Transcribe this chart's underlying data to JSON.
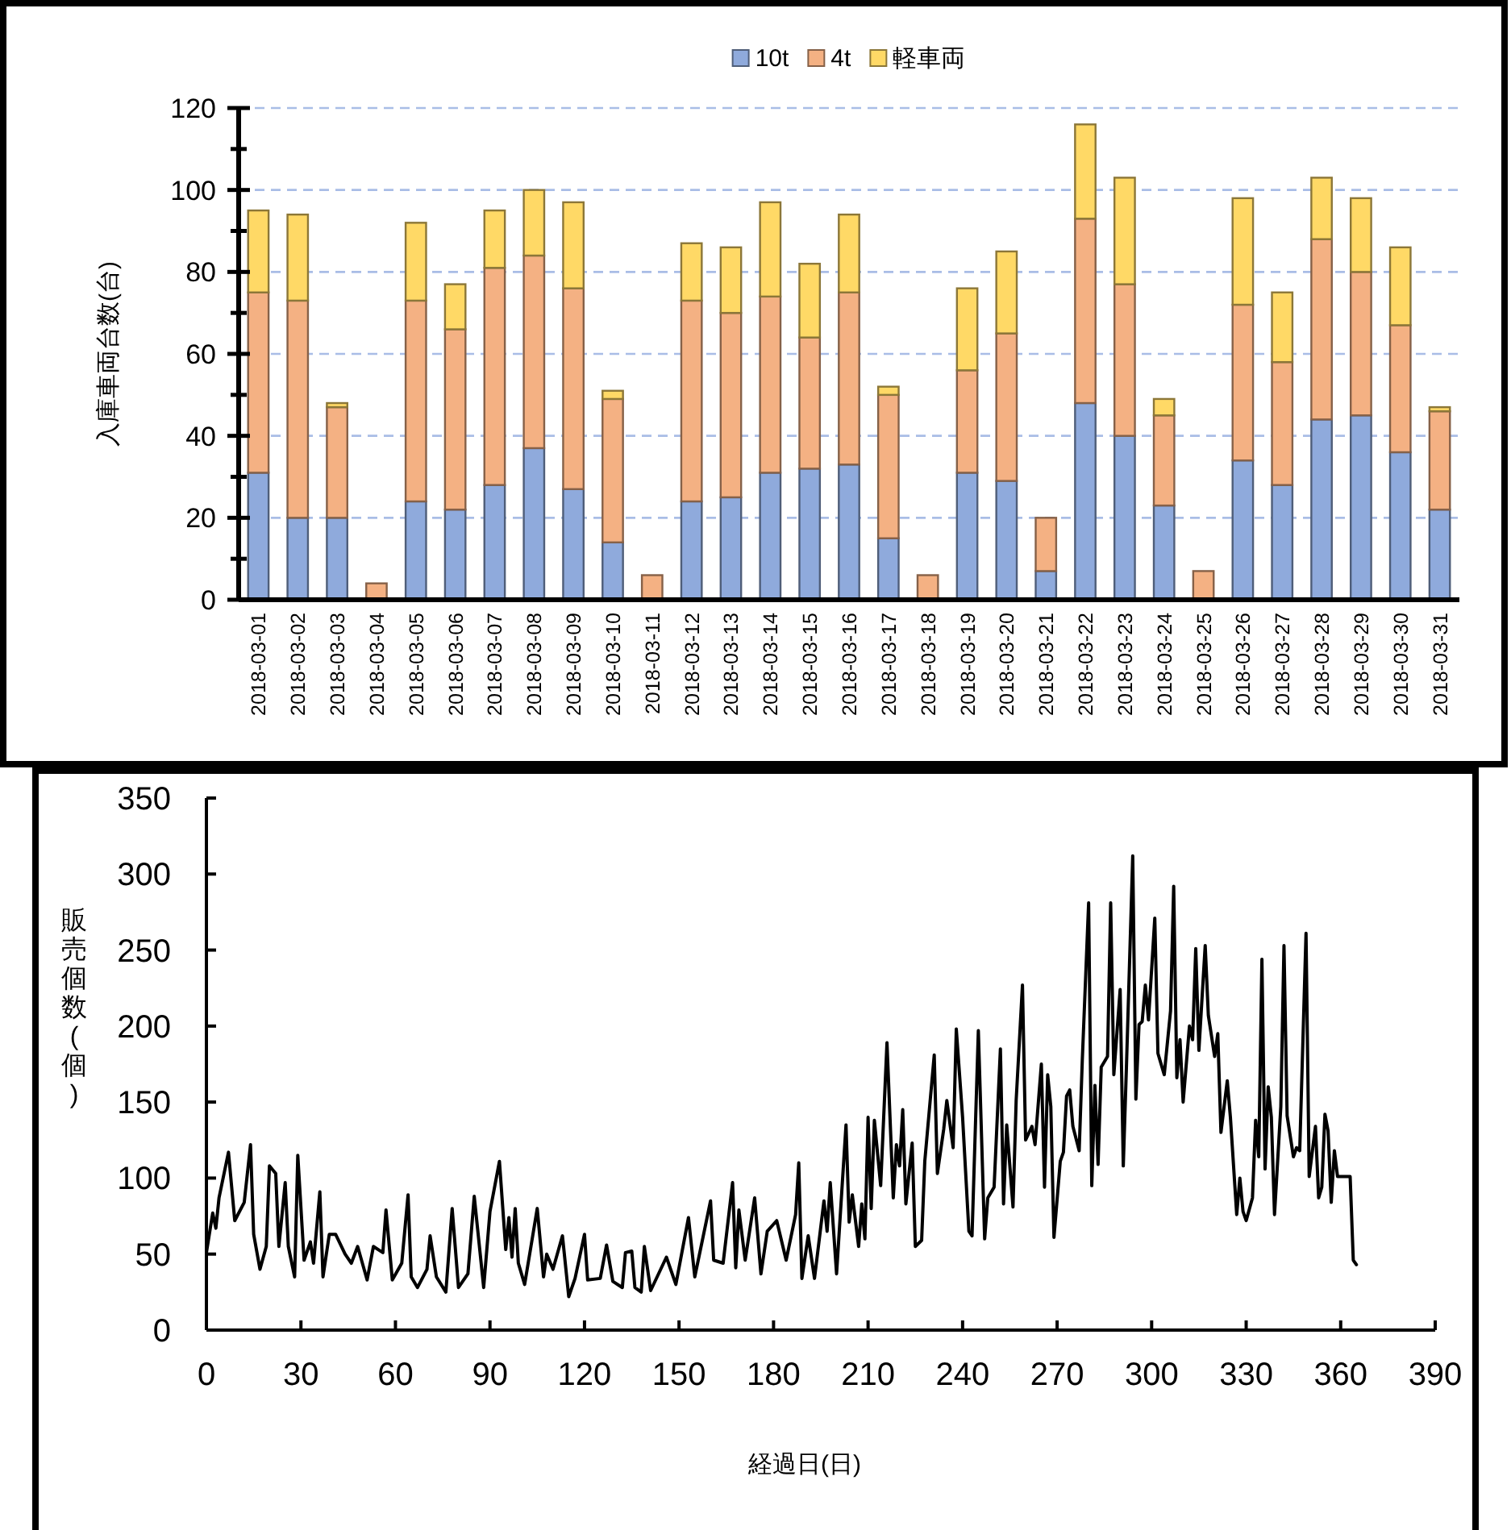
{
  "chart_data": [
    {
      "type": "bar",
      "stacked": true,
      "ylabel": "入庫車両台数(台)",
      "legend": "top",
      "grid": "y",
      "categories": [
        "2018-03-01",
        "2018-03-02",
        "2018-03-03",
        "2018-03-04",
        "2018-03-05",
        "2018-03-06",
        "2018-03-07",
        "2018-03-08",
        "2018-03-09",
        "2018-03-10",
        "2018-03-11",
        "2018-03-12",
        "2018-03-13",
        "2018-03-14",
        "2018-03-15",
        "2018-03-16",
        "2018-03-17",
        "2018-03-18",
        "2018-03-19",
        "2018-03-20",
        "2018-03-21",
        "2018-03-22",
        "2018-03-23",
        "2018-03-24",
        "2018-03-25",
        "2018-03-26",
        "2018-03-27",
        "2018-03-28",
        "2018-03-29",
        "2018-03-30",
        "2018-03-31"
      ],
      "series": [
        {
          "name": "10t",
          "color": "#8faadc",
          "values": [
            31,
            20,
            20,
            0,
            24,
            22,
            28,
            37,
            27,
            14,
            0,
            24,
            25,
            31,
            32,
            33,
            15,
            0,
            31,
            29,
            7,
            48,
            40,
            23,
            0,
            34,
            28,
            44,
            45,
            36,
            22
          ]
        },
        {
          "name": "4t",
          "color": "#f4b183",
          "values": [
            44,
            53,
            27,
            4,
            49,
            44,
            53,
            47,
            49,
            35,
            6,
            49,
            45,
            43,
            32,
            42,
            35,
            6,
            25,
            36,
            13,
            45,
            37,
            22,
            7,
            38,
            30,
            44,
            35,
            31,
            24
          ]
        },
        {
          "name": "軽車両",
          "color": "#ffd966",
          "values": [
            20,
            21,
            1,
            0,
            19,
            11,
            14,
            16,
            21,
            2,
            0,
            14,
            16,
            23,
            18,
            19,
            2,
            0,
            20,
            20,
            0,
            23,
            26,
            4,
            0,
            26,
            17,
            15,
            18,
            19,
            1
          ]
        }
      ],
      "ylim": [
        0,
        120
      ],
      "yticks": [
        0,
        {
          "value": 10,
          "label": null
        },
        20,
        {
          "value": 30,
          "label": null
        },
        40,
        {
          "value": 50,
          "label": null
        },
        60,
        {
          "value": 70,
          "label": null
        },
        80,
        {
          "value": 90,
          "label": null
        },
        100,
        {
          "value": 110,
          "label": null
        },
        120
      ]
    },
    {
      "type": "line",
      "xlabel": "経過日(日)",
      "ylabel": "販売個数(個)",
      "color": "#000000",
      "line_style": "solid",
      "xlim": [
        0,
        390
      ],
      "xticks": [
        0,
        30,
        60,
        90,
        120,
        150,
        180,
        210,
        240,
        270,
        300,
        330,
        360,
        390
      ],
      "ylim": [
        0,
        350
      ],
      "yticks": [
        0,
        50,
        100,
        150,
        200,
        250,
        300,
        350
      ],
      "x": [
        0,
        2,
        3,
        4,
        7,
        9,
        12,
        14,
        15,
        17,
        19,
        20,
        22,
        23,
        25,
        26,
        28,
        29,
        31,
        33,
        34,
        36,
        37,
        39,
        41,
        44,
        46,
        48,
        51,
        53,
        56,
        57,
        59,
        62,
        64,
        65,
        67,
        70,
        71,
        73,
        76,
        78,
        80,
        83,
        85,
        88,
        90,
        93,
        95,
        96,
        97,
        98,
        99,
        101,
        103,
        105,
        107,
        108,
        110,
        113,
        115,
        117,
        120,
        121,
        125,
        127,
        129,
        132,
        133,
        135,
        136,
        138,
        139,
        141,
        146,
        149,
        153,
        155,
        160,
        161,
        164,
        167,
        168,
        169,
        171,
        174,
        176,
        178,
        181,
        184,
        187,
        188,
        189,
        191,
        193,
        196,
        197,
        198,
        200,
        203,
        204,
        205,
        207,
        208,
        209,
        210,
        211,
        212,
        214,
        216,
        218,
        219,
        220,
        221,
        222,
        224,
        225,
        227,
        228,
        231,
        232,
        234,
        235,
        237,
        238,
        240,
        242,
        243,
        245,
        247,
        248,
        250,
        252,
        253,
        254,
        256,
        257,
        259,
        260,
        262,
        263,
        265,
        266,
        267,
        268,
        269,
        271,
        272,
        273,
        274,
        275,
        277,
        278,
        280,
        281,
        282,
        283,
        284,
        286,
        287,
        288,
        290,
        291,
        292,
        294,
        295,
        296,
        297,
        298,
        299,
        301,
        302,
        304,
        306,
        307,
        308,
        309,
        310,
        312,
        313,
        314,
        315,
        317,
        318,
        320,
        321,
        322,
        324,
        325,
        327,
        328,
        329,
        330,
        332,
        333,
        334,
        335,
        336,
        337,
        338,
        339,
        341,
        342,
        343,
        345,
        346,
        347,
        349,
        350,
        352,
        353,
        354,
        355,
        356,
        357,
        358,
        359,
        363,
        364,
        365
      ],
      "values": [
        51,
        77,
        67,
        87,
        117,
        72,
        84,
        122,
        63,
        40,
        55,
        108,
        103,
        55,
        97,
        55,
        35,
        115,
        46,
        58,
        44,
        91,
        35,
        63,
        63,
        50,
        44,
        55,
        33,
        55,
        51,
        79,
        33,
        44,
        89,
        35,
        28,
        40,
        62,
        35,
        25,
        80,
        28,
        37,
        88,
        28,
        78,
        111,
        53,
        74,
        48,
        80,
        44,
        30,
        55,
        80,
        35,
        50,
        40,
        62,
        22,
        34,
        63,
        33,
        34,
        56,
        32,
        28,
        51,
        52,
        28,
        25,
        55,
        26,
        48,
        30,
        74,
        35,
        85,
        46,
        44,
        97,
        41,
        79,
        46,
        87,
        37,
        65,
        72,
        46,
        76,
        110,
        34,
        62,
        34,
        85,
        65,
        97,
        37,
        135,
        71,
        89,
        55,
        83,
        60,
        140,
        80,
        138,
        95,
        189,
        87,
        122,
        108,
        145,
        83,
        123,
        55,
        59,
        111,
        181,
        103,
        132,
        151,
        120,
        198,
        140,
        65,
        62,
        197,
        60,
        87,
        94,
        185,
        83,
        135,
        81,
        151,
        227,
        125,
        134,
        122,
        175,
        94,
        168,
        147,
        61,
        111,
        117,
        154,
        158,
        134,
        118,
        178,
        281,
        95,
        161,
        109,
        173,
        180,
        281,
        168,
        224,
        108,
        173,
        312,
        152,
        201,
        203,
        227,
        204,
        271,
        182,
        168,
        210,
        292,
        166,
        191,
        150,
        200,
        191,
        251,
        184,
        253,
        207,
        180,
        195,
        130,
        164,
        140,
        76,
        100,
        78,
        72,
        87,
        138,
        114,
        244,
        106,
        160,
        140,
        76,
        147,
        253,
        141,
        114,
        120,
        118,
        261,
        101,
        134,
        87,
        94,
        142,
        131,
        84,
        118,
        101,
        101,
        46,
        43
      ]
    }
  ]
}
